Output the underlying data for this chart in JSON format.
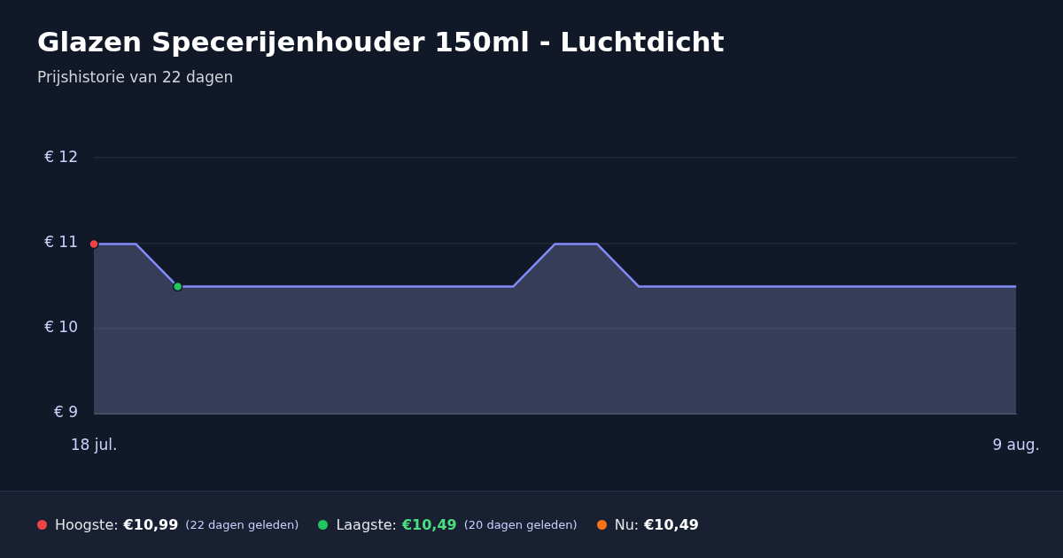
{
  "chart_data": {
    "type": "area",
    "title": "Glazen Specerijenhouder 150ml - Luchtdicht",
    "subtitle": "Prijshistorie van 22 dagen",
    "x": [
      "--07-18",
      "--07-19",
      "--07-20",
      "--07-21",
      "--07-22",
      "--07-23",
      "--07-24",
      "--07-25",
      "--07-26",
      "--07-27",
      "--07-28",
      "--07-29",
      "--07-30",
      "--07-31",
      "--08-01",
      "--08-02",
      "--08-03",
      "--08-04",
      "--08-05",
      "--08-06",
      "--08-07",
      "--08-08",
      "--08-09"
    ],
    "series": [
      {
        "color": "#818cf8",
        "marker": "none",
        "values": [
          10.99,
          10.99,
          10.49,
          10.49,
          10.49,
          10.49,
          10.49,
          10.49,
          10.49,
          10.49,
          10.49,
          10.99,
          10.99,
          10.49,
          10.49,
          10.49,
          10.49,
          10.49,
          10.49,
          10.49,
          10.49,
          10.49,
          10.49
        ]
      },
      {
        "type": "scatter",
        "x": [
          "--07-18"
        ],
        "color": "#ef4444",
        "marker": "circle",
        "values": [
          10.99
        ]
      },
      {
        "type": "scatter",
        "x": [
          "--07-20"
        ],
        "color": "#22c55e",
        "marker": "circle",
        "values": [
          10.49
        ]
      }
    ],
    "xlim": [
      "--07-18",
      "--08-09"
    ],
    "xticks": [
      {
        "value": "--07-18",
        "label": "18 jul."
      },
      {
        "value": "--08-09",
        "label": "9 aug."
      }
    ],
    "ylim": [
      9,
      12
    ],
    "yticks": [
      {
        "value": 9,
        "label": "€ 9"
      },
      {
        "value": 10,
        "label": "€ 10"
      },
      {
        "value": 11,
        "label": "€ 11"
      },
      {
        "value": 12,
        "label": "€ 12"
      }
    ],
    "grid": "y",
    "annotations": [
      "Hoogste:",
      "€10,99",
      "(22 dagen geleden)",
      "Laagste:",
      "€10,49",
      "(20 dagen geleden)",
      "Nu:",
      "€10,49"
    ]
  }
}
